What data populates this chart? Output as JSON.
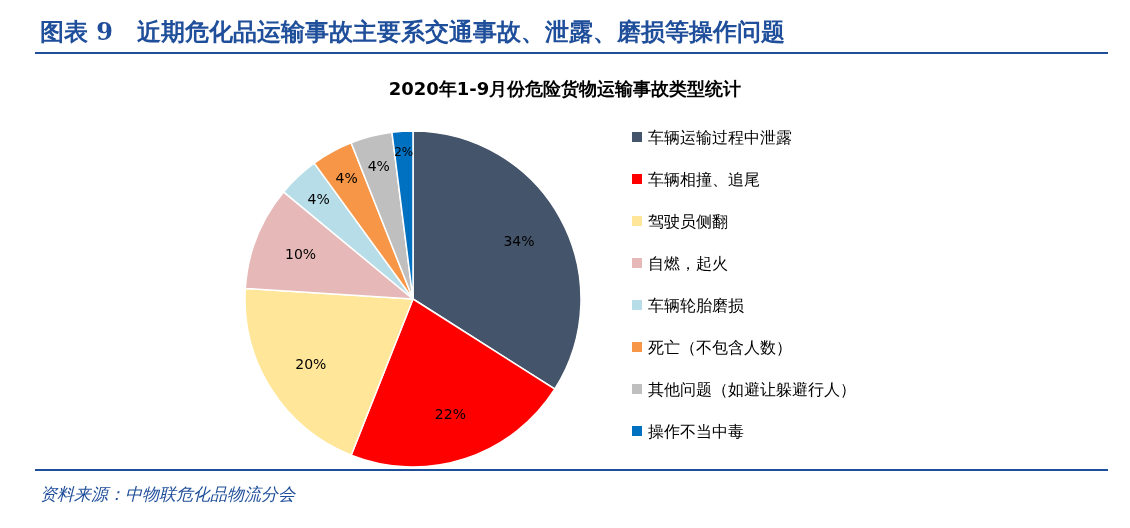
{
  "chart_data": {
    "type": "pie",
    "title": "图表 9　近期危化品运输事故主要系交通事故、泄露、磨损等操作问题",
    "subtitle": "2020年1-9月份危险货物运输事故类型统计",
    "categories": [
      "车辆运输过程中泄露",
      "车辆相撞、追尾",
      "驾驶员侧翻",
      "自燃，起火",
      "车辆轮胎磨损",
      "死亡（不包含人数）",
      "其他问题（如避让躲避行人）",
      "操作不当中毒"
    ],
    "values": [
      34,
      22,
      20,
      10,
      4,
      4,
      4,
      2
    ],
    "colors": [
      "#44546a",
      "#ff0000",
      "#ffe699",
      "#e6b9b8",
      "#b7dee8",
      "#f79646",
      "#bfbfbf",
      "#0070c0"
    ],
    "value_labels": [
      "34%",
      "22%",
      "20%",
      "10%",
      "4%",
      "4%",
      "4%",
      "2%"
    ],
    "legend": "right",
    "annotations": [
      "资料来源：中物联危化品物流分会"
    ]
  }
}
